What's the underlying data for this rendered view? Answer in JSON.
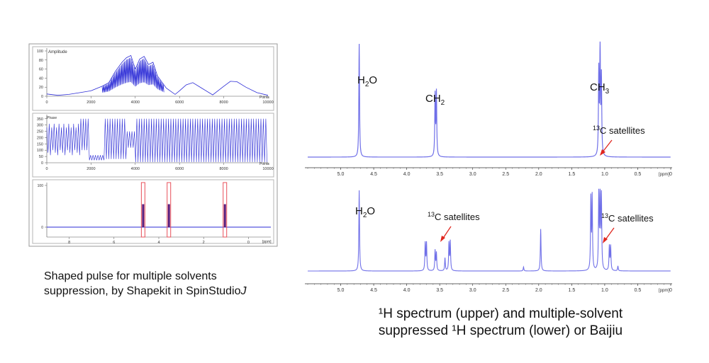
{
  "captions": {
    "left_line1": "Shaped pulse for multiple solvents",
    "left_line2_main": "suppression, by Shapekit in SpinStudio",
    "left_line2_italic": "J",
    "right_line1_pre": "¹H spectrum (upper) and multiple-solvent",
    "right_line2": "suppressed ¹H spectrum (lower) or Baijiu"
  },
  "colors": {
    "trace": "#2b2bd6",
    "spectrum": "#6f6fe8",
    "arrow": "#e0261e",
    "pulse_box": "#e8505a",
    "pulse_fill": "#5a1a7a"
  },
  "chart_data": [
    {
      "type": "line",
      "id": "amplitude",
      "title": "",
      "inner_label": "Amplitude",
      "xlabel": "Points",
      "ylabel": "",
      "xlim": [
        0,
        10000
      ],
      "ylim": [
        0,
        100
      ],
      "x_ticks": [
        "0",
        "2000",
        "4000",
        "6000",
        "8000",
        "10000"
      ],
      "y_ticks": [
        "0",
        "20",
        "40",
        "60",
        "80",
        "100"
      ],
      "series": [
        {
          "x": [
            0,
            500,
            1000,
            1500,
            2000,
            2500,
            2800,
            3100,
            3400,
            3600,
            3800,
            4000,
            4200,
            4400,
            4600,
            4800,
            5000,
            5400,
            5800,
            6000,
            6300,
            6600,
            7000,
            7500,
            8000,
            8300,
            8600,
            9000,
            9500,
            10000
          ],
          "y": [
            5,
            2,
            4,
            8,
            12,
            22,
            30,
            55,
            75,
            85,
            90,
            60,
            82,
            88,
            70,
            75,
            45,
            18,
            4,
            12,
            25,
            30,
            18,
            3,
            22,
            33,
            32,
            20,
            8,
            2
          ]
        }
      ]
    },
    {
      "type": "line",
      "id": "phase",
      "title": "",
      "inner_label": "Phase",
      "xlabel": "Points",
      "ylabel": "",
      "xlim": [
        0,
        10000
      ],
      "ylim": [
        0,
        360
      ],
      "x_ticks": [
        "0",
        "2000",
        "4000",
        "6000",
        "8000",
        "10000"
      ],
      "y_ticks": [
        "0",
        "50",
        "100",
        "150",
        "200",
        "250",
        "300",
        "350"
      ]
    },
    {
      "type": "line",
      "id": "pulse-profile",
      "title": "",
      "xlabel": "[ppm]",
      "ylabel": "",
      "xlim": [
        9,
        -1
      ],
      "ylim": [
        0,
        100
      ],
      "x_ticks": [
        "8",
        "6",
        "4",
        "2",
        "0"
      ],
      "y_ticks": [
        "0",
        "100"
      ],
      "bands_ppm": [
        4.7,
        3.55,
        1.05
      ]
    },
    {
      "type": "line",
      "id": "upper-spectrum",
      "title": "",
      "xlabel": "[ppm]",
      "ylabel": "",
      "xlim": [
        5.5,
        0
      ],
      "x_ticks": [
        "5.0",
        "4.5",
        "4.0",
        "3.5",
        "3.0",
        "2.5",
        "2.0",
        "1.5",
        "1.0",
        "0.5",
        "0"
      ],
      "peaks": [
        {
          "ppm": 4.72,
          "height": 1.0
        },
        {
          "ppm": 3.57,
          "height": 0.54
        },
        {
          "ppm": 3.55,
          "height": 0.56
        },
        {
          "ppm": 1.09,
          "height": 0.74
        },
        {
          "ppm": 1.07,
          "height": 0.95
        },
        {
          "ppm": 1.05,
          "height": 0.68
        }
      ],
      "annotations": [
        {
          "text": "H",
          "sub": "2",
          "tail": "O"
        },
        {
          "text": "CH",
          "sub": "2",
          "tail": ""
        },
        {
          "text": "CH",
          "sub": "3",
          "tail": ""
        },
        {
          "sup": "13",
          "text": "C satellites"
        }
      ]
    },
    {
      "type": "line",
      "id": "lower-spectrum",
      "title": "",
      "xlabel": "[ppm]",
      "ylabel": "",
      "xlim": [
        5.5,
        0
      ],
      "x_ticks": [
        "5.0",
        "4.5",
        "4.0",
        "3.5",
        "3.0",
        "2.5",
        "2.0",
        "1.5",
        "1.0",
        "0.5",
        "0"
      ],
      "peaks": [
        {
          "ppm": 4.72,
          "height": 1.0
        },
        {
          "ppm": 3.72,
          "height": 0.34
        },
        {
          "ppm": 3.7,
          "height": 0.34
        },
        {
          "ppm": 3.57,
          "height": 0.25
        },
        {
          "ppm": 3.55,
          "height": 0.22
        },
        {
          "ppm": 3.42,
          "height": 0.16
        },
        {
          "ppm": 3.36,
          "height": 0.34
        },
        {
          "ppm": 3.34,
          "height": 0.36
        },
        {
          "ppm": 2.23,
          "height": 0.05
        },
        {
          "ppm": 1.97,
          "height": 0.52
        },
        {
          "ppm": 1.21,
          "height": 0.88
        },
        {
          "ppm": 1.19,
          "height": 0.9
        },
        {
          "ppm": 1.09,
          "height": 0.92
        },
        {
          "ppm": 1.07,
          "height": 0.94
        },
        {
          "ppm": 1.05,
          "height": 0.9
        },
        {
          "ppm": 0.93,
          "height": 0.3
        },
        {
          "ppm": 0.91,
          "height": 0.3
        },
        {
          "ppm": 0.8,
          "height": 0.06
        }
      ],
      "annotations": [
        {
          "text": "H",
          "sub": "2",
          "tail": "O"
        },
        {
          "sup": "13",
          "text": "C satellites"
        },
        {
          "sup": "13",
          "text": "C satellites"
        }
      ]
    }
  ]
}
